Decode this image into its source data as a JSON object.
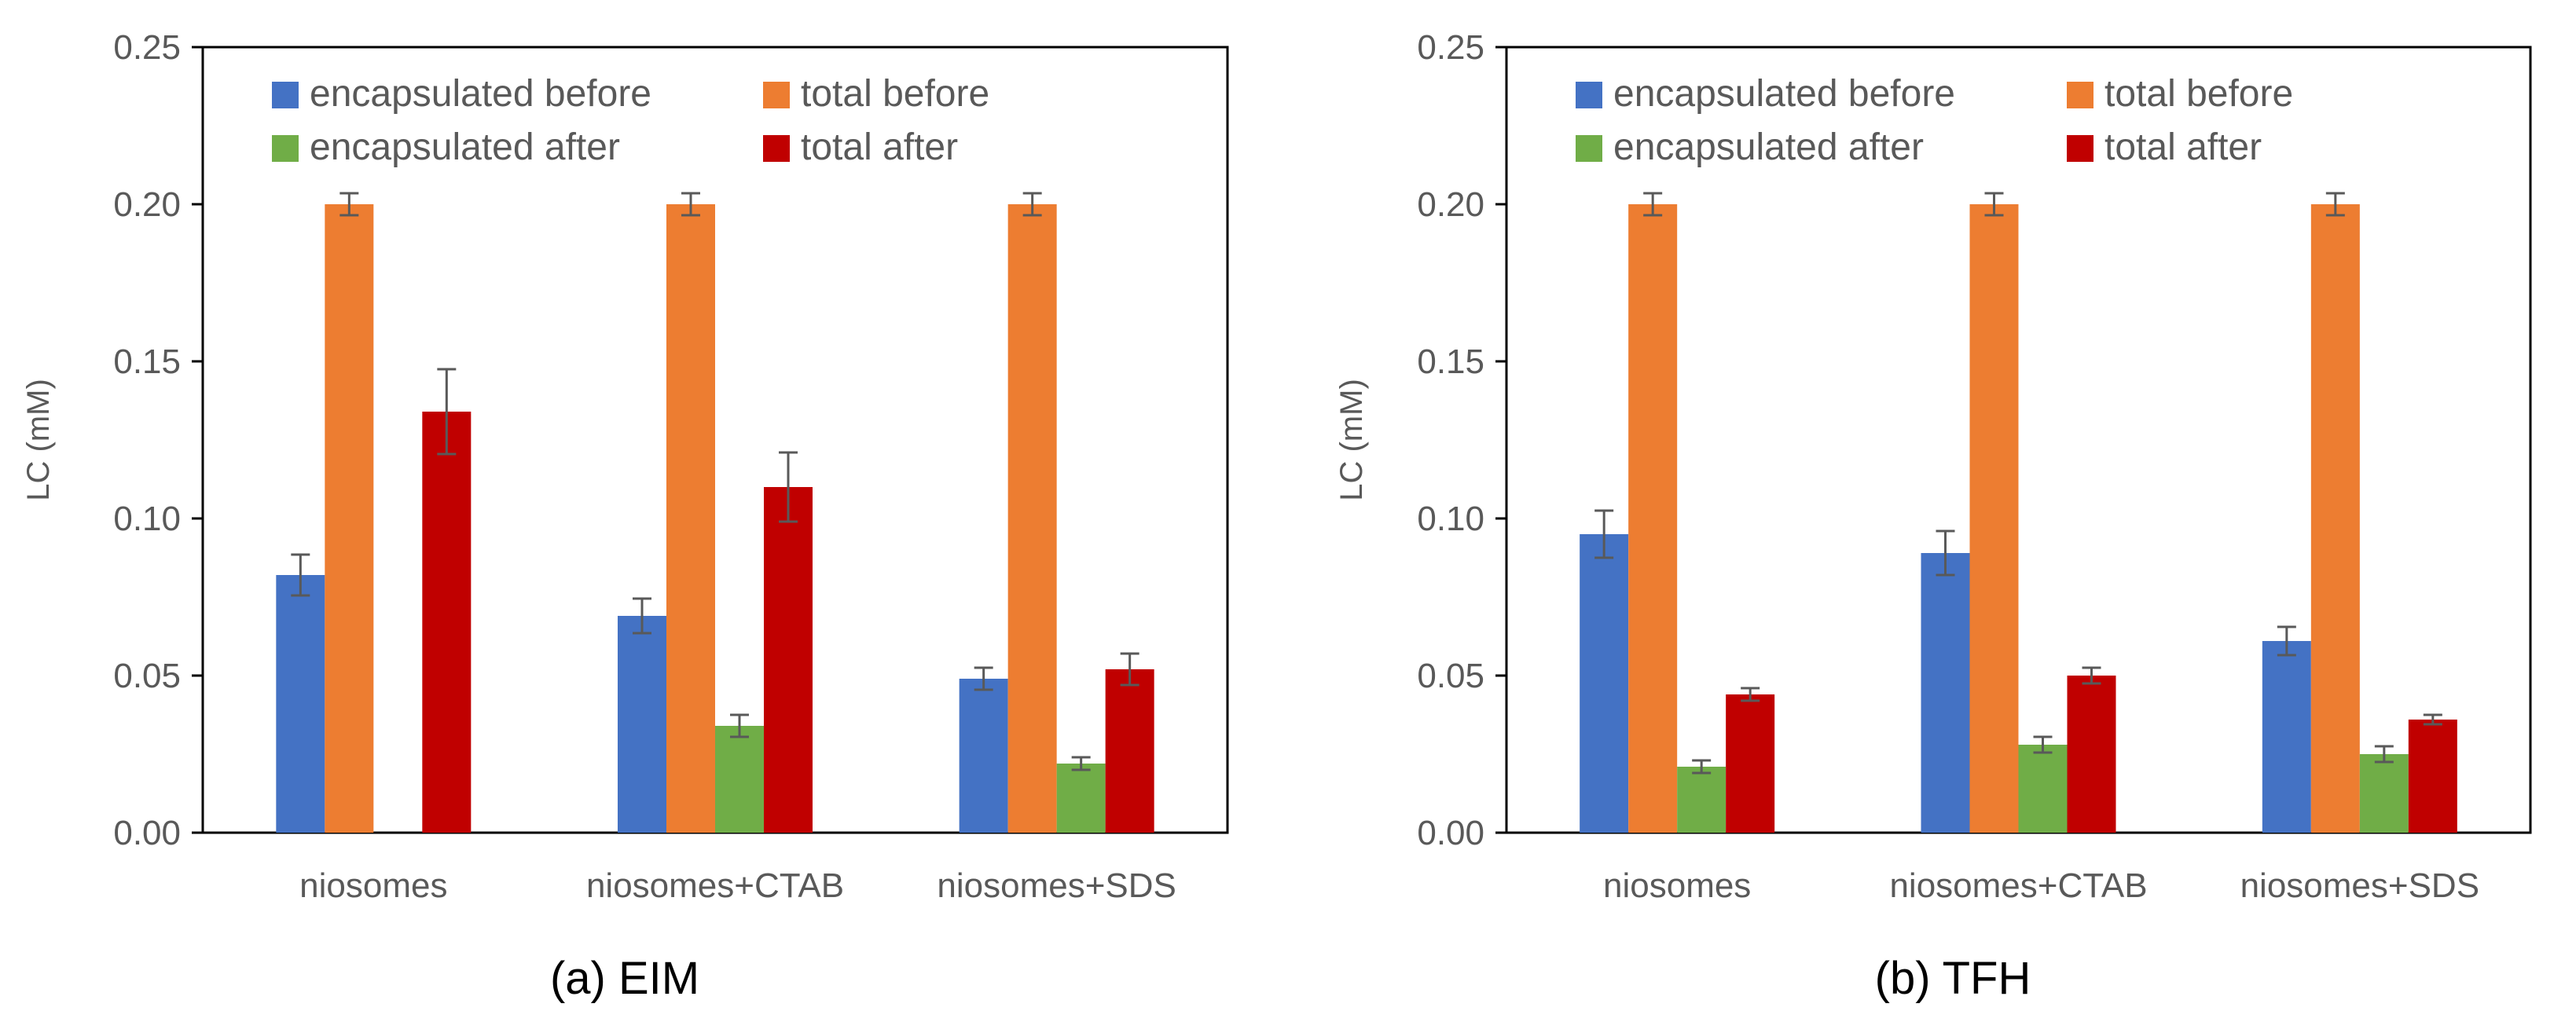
{
  "chart_data": [
    {
      "type": "bar",
      "panel_label": "(a) EIM",
      "ylabel": "LC (mM)",
      "xlabel": "",
      "ylim": [
        0,
        0.25
      ],
      "yticks": [
        "0.00",
        "0.05",
        "0.10",
        "0.15",
        "0.20",
        "0.25"
      ],
      "categories": [
        "niosomes",
        "niosomes+CTAB",
        "niosomes+SDS"
      ],
      "legend_position": "top-left",
      "grid": false,
      "series": [
        {
          "name": "encapsulated before",
          "color": "#4472C4",
          "values": [
            0.082,
            0.069,
            0.049
          ],
          "errors": [
            0.0065,
            0.0055,
            0.0035
          ]
        },
        {
          "name": "total before",
          "color": "#ED7D31",
          "values": [
            0.2,
            0.2,
            0.2
          ],
          "errors": [
            0.0035,
            0.0035,
            0.0035
          ]
        },
        {
          "name": "encapsulated after",
          "color": "#70AD47",
          "values": [
            null,
            0.034,
            0.022
          ],
          "errors": [
            null,
            0.0035,
            0.002
          ]
        },
        {
          "name": "total after",
          "color": "#C00000",
          "values": [
            0.134,
            0.11,
            0.052
          ],
          "errors": [
            0.0135,
            0.011,
            0.005
          ]
        }
      ]
    },
    {
      "type": "bar",
      "panel_label": "(b) TFH",
      "ylabel": "LC (mM)",
      "xlabel": "",
      "ylim": [
        0,
        0.25
      ],
      "yticks": [
        "0.00",
        "0.05",
        "0.10",
        "0.15",
        "0.20",
        "0.25"
      ],
      "categories": [
        "niosomes",
        "niosomes+CTAB",
        "niosomes+SDS"
      ],
      "legend_position": "top-left",
      "grid": false,
      "series": [
        {
          "name": "encapsulated before",
          "color": "#4472C4",
          "values": [
            0.095,
            0.089,
            0.061
          ],
          "errors": [
            0.0075,
            0.007,
            0.0045
          ]
        },
        {
          "name": "total before",
          "color": "#ED7D31",
          "values": [
            0.2,
            0.2,
            0.2
          ],
          "errors": [
            0.0035,
            0.0035,
            0.0035
          ]
        },
        {
          "name": "encapsulated after",
          "color": "#70AD47",
          "values": [
            0.021,
            0.028,
            0.025
          ],
          "errors": [
            0.002,
            0.0025,
            0.0025
          ]
        },
        {
          "name": "total after",
          "color": "#C00000",
          "values": [
            0.044,
            0.05,
            0.036
          ],
          "errors": [
            0.002,
            0.0025,
            0.0015
          ]
        }
      ]
    }
  ]
}
